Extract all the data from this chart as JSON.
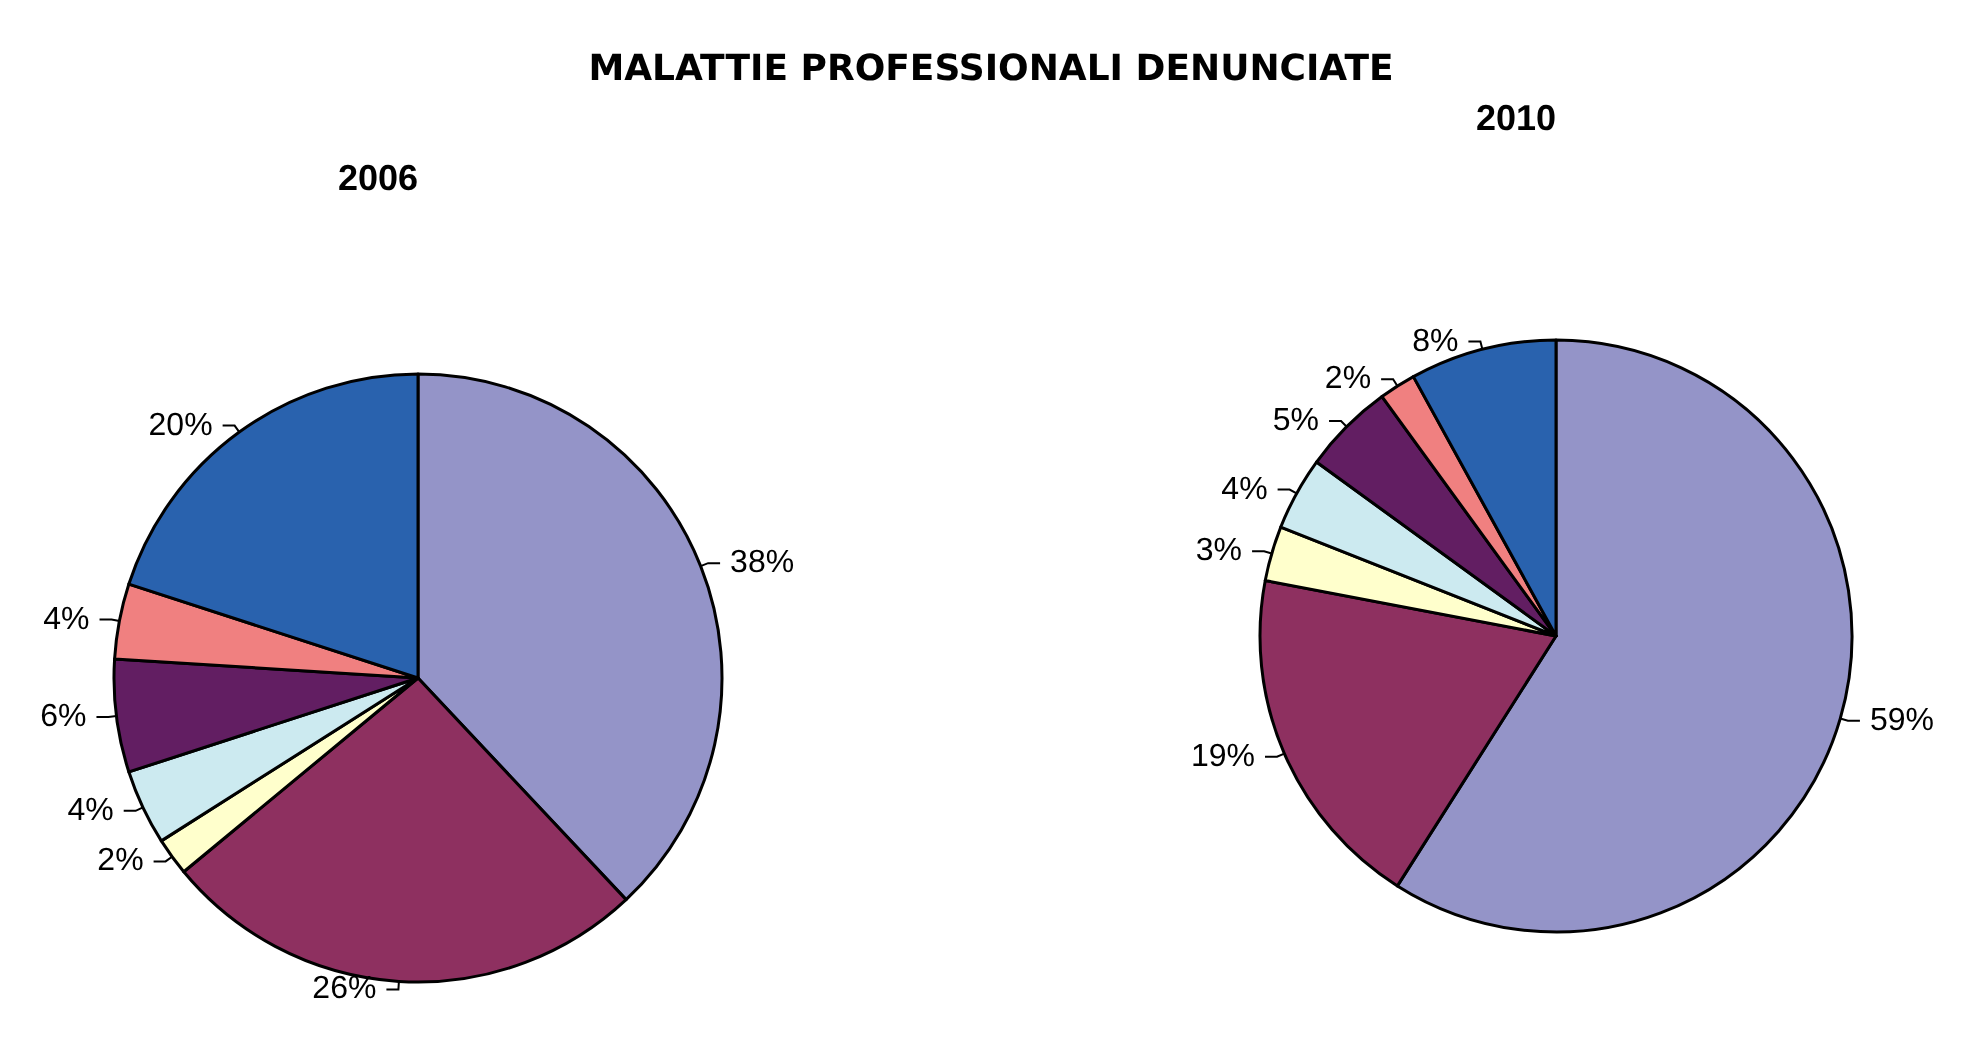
{
  "chart_data": [
    {
      "type": "pie",
      "title": "2006",
      "annotations": [
        "MALATTIE PROFESSIONALI DENUNCIATE"
      ],
      "categories": [
        null,
        null,
        null,
        null,
        null,
        null,
        null
      ],
      "values": [
        38,
        26,
        2,
        4,
        6,
        4,
        20
      ],
      "colors": [
        "#9494c8",
        "#8e3060",
        "#ffffcc",
        "#cceaf0",
        "#621e62",
        "#f08080",
        "#2962ae"
      ],
      "value_labels": [
        "38%",
        "26%",
        "2%",
        "4%",
        "6%",
        "4%",
        "20%"
      ]
    },
    {
      "type": "pie",
      "title": "2010",
      "categories": [
        null,
        null,
        null,
        null,
        null,
        null,
        null
      ],
      "values": [
        59,
        19,
        3,
        4,
        5,
        2,
        8
      ],
      "colors": [
        "#9494c8",
        "#8e3060",
        "#ffffcc",
        "#cceaf0",
        "#621e62",
        "#f08080",
        "#2962ae"
      ],
      "value_labels": [
        "59%",
        "19%",
        "3%",
        "4%",
        "5%",
        "2%",
        "8%"
      ]
    }
  ]
}
